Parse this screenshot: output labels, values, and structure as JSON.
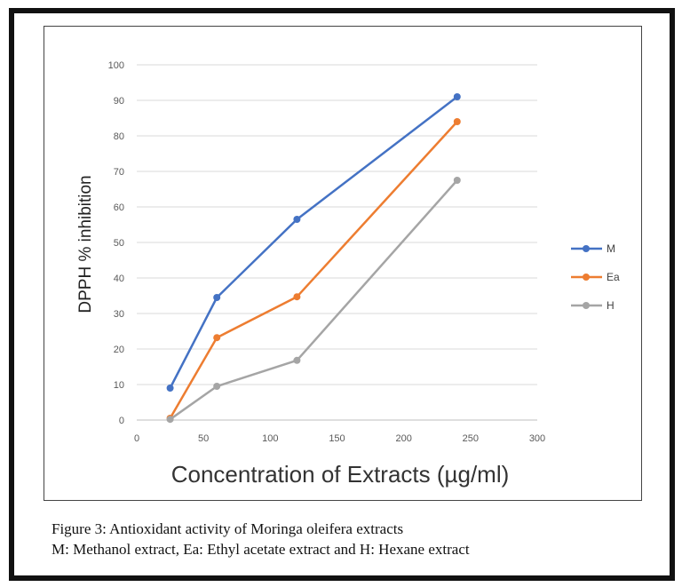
{
  "chart_data": {
    "type": "line",
    "title": "",
    "xlabel": "Concentration of Extracts (µg/ml)",
    "ylabel": "DPPH % inhibition",
    "xlim": [
      0,
      300
    ],
    "ylim": [
      0,
      100
    ],
    "xticks": [
      0,
      50,
      100,
      150,
      200,
      250,
      300
    ],
    "yticks": [
      0,
      10,
      20,
      30,
      40,
      50,
      60,
      70,
      80,
      90,
      100
    ],
    "grid": true,
    "legend_position": "right",
    "series": [
      {
        "name": "M",
        "color": "#4472C4",
        "x": [
          25,
          60,
          120,
          240
        ],
        "y": [
          9,
          34.5,
          56.5,
          91
        ]
      },
      {
        "name": "Ea",
        "color": "#ED7D31",
        "x": [
          25,
          60,
          120,
          240
        ],
        "y": [
          0.5,
          23.2,
          34.7,
          84
        ]
      },
      {
        "name": "H",
        "color": "#A5A5A5",
        "x": [
          25,
          60,
          120,
          240
        ],
        "y": [
          0.2,
          9.5,
          16.8,
          67.5
        ]
      }
    ]
  },
  "caption": {
    "line1": "Figure 3: Antioxidant activity of Moringa oleifera extracts",
    "line2": "M: Methanol extract, Ea: Ethyl acetate extract and H: Hexane extract"
  }
}
